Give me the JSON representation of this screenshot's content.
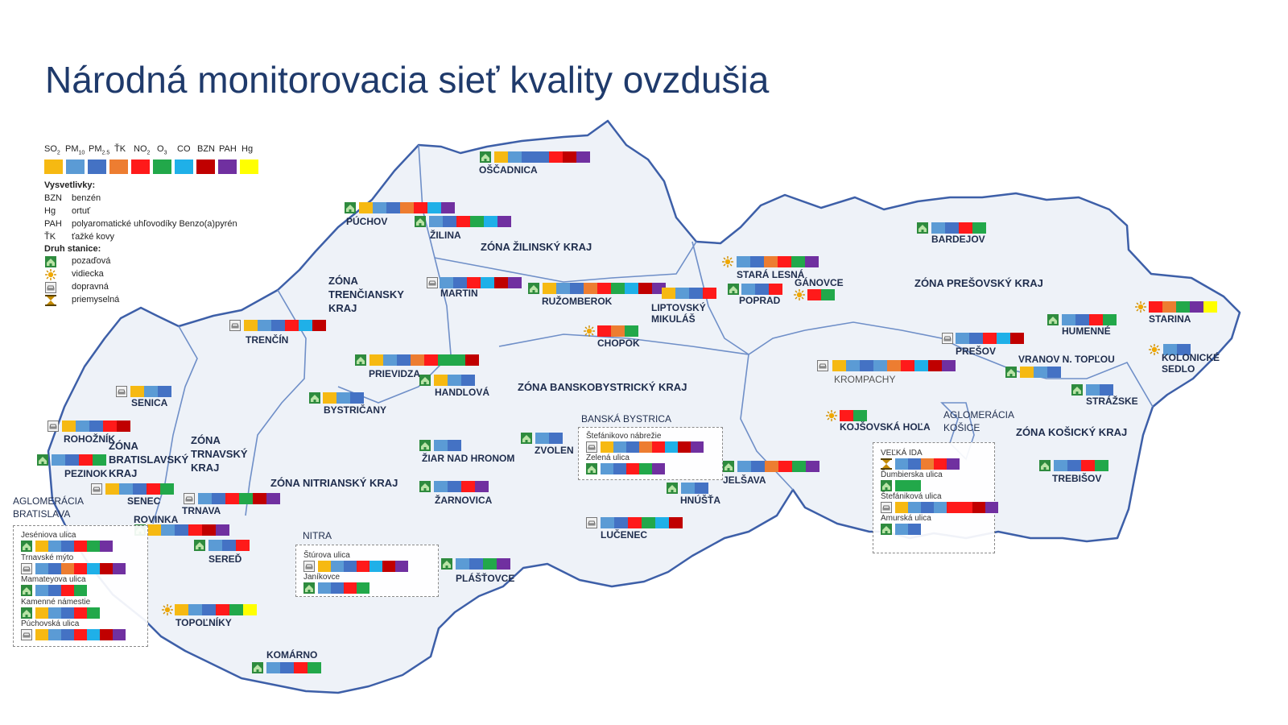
{
  "title": "Národná monitorovacia sieť kvality ovzdušia",
  "colors": {
    "SO2": "#f6b912",
    "PM10": "#5b9bd5",
    "PM25": "#4472c4",
    "TK": "#ed7d31",
    "NO2": "#ff1a1a",
    "O3": "#22a84a",
    "CO": "#1fb0e8",
    "BZN": "#c00000",
    "PAH": "#7030a0",
    "Hg": "#ffff00",
    "map_fill": "#eef2f8",
    "map_border": "#3d5fa8"
  },
  "legend": {
    "pollutants": [
      {
        "key": "SO2",
        "label": "SO",
        "sub": "2"
      },
      {
        "key": "PM10",
        "label": "PM",
        "sub": "10"
      },
      {
        "key": "PM25",
        "label": "PM",
        "sub": "2.5"
      },
      {
        "key": "TK",
        "label": "ŤK",
        "sub": ""
      },
      {
        "key": "NO2",
        "label": "NO",
        "sub": "2"
      },
      {
        "key": "O3",
        "label": "O",
        "sub": "3"
      },
      {
        "key": "CO",
        "label": "CO",
        "sub": ""
      },
      {
        "key": "BZN",
        "label": "BZN",
        "sub": ""
      },
      {
        "key": "PAH",
        "label": "PAH",
        "sub": ""
      },
      {
        "key": "Hg",
        "label": "Hg",
        "sub": ""
      }
    ],
    "vysvetlivky_title": "Vysvetlivky:",
    "vysvetlivky": [
      {
        "k": "BZN",
        "v": "benzén"
      },
      {
        "k": "Hg",
        "v": "ortuť"
      },
      {
        "k": "PAH",
        "v": "polyaromatické uhľovodíky Benzo(a)pyrén"
      },
      {
        "k": "ŤK",
        "v": "ťažké kovy"
      }
    ],
    "druh_title": "Druh stanice:",
    "druh": [
      {
        "icon": "background-station-icon",
        "type": "bg",
        "v": "pozaďová"
      },
      {
        "icon": "rural-station-icon",
        "type": "rural",
        "v": "vidiecka"
      },
      {
        "icon": "traffic-station-icon",
        "type": "traffic",
        "v": "dopravná"
      },
      {
        "icon": "industrial-station-icon",
        "type": "ind",
        "v": "priemyselná"
      }
    ]
  },
  "zones": [
    "ZÓNA ŽILINSKÝ KRAJ",
    "ZÓNA TRENČIANSKY KRAJ",
    "ZÓNA PREŠOVSKÝ KRAJ",
    "ZÓNA BANSKOBYSTRICKÝ KRAJ",
    "ZÓNA TRNAVSKÝ KRAJ",
    "ZÓNA BRATISLAVSKÝ KRAJ",
    "ZÓNA NITRIANSKÝ KRAJ",
    "ZÓNA KOŠICKÝ KRAJ"
  ],
  "agglomerations": [
    "AGLOMERÁCIA BRATISLAVA",
    "AGLOMERÁCIA KOŠICE"
  ],
  "stations": [
    {
      "name": "OŠČADNICA",
      "type": "bg",
      "poll": [
        "SO2",
        "PM10",
        "PM25",
        "PM25",
        "NO2",
        "BZN",
        "PAH"
      ]
    },
    {
      "name": "PÚCHOV",
      "type": "bg",
      "poll": [
        "SO2",
        "PM10",
        "PM25",
        "TK",
        "NO2",
        "CO",
        "PAH"
      ]
    },
    {
      "name": "ŽILINA",
      "type": "bg",
      "poll": [
        "PM10",
        "PM25",
        "NO2",
        "O3",
        "CO",
        "PAH"
      ]
    },
    {
      "name": "MARTIN",
      "type": "traffic",
      "poll": [
        "PM10",
        "PM25",
        "NO2",
        "CO",
        "BZN",
        "PAH"
      ]
    },
    {
      "name": "RUŽOMBEROK",
      "type": "bg",
      "poll": [
        "SO2",
        "PM10",
        "PM25",
        "TK",
        "NO2",
        "O3",
        "CO",
        "BZN",
        "PAH"
      ]
    },
    {
      "name": "LIPTOVSKÝ MIKULÁŠ",
      "type": "none",
      "poll": [
        "SO2",
        "PM10",
        "PM25",
        "NO2"
      ]
    },
    {
      "name": "STARÁ LESNÁ",
      "type": "rural",
      "poll": [
        "PM10",
        "PM25",
        "TK",
        "NO2",
        "O3",
        "PAH"
      ]
    },
    {
      "name": "POPRAD",
      "type": "bg",
      "poll": [
        "PM10",
        "PM25",
        "NO2"
      ]
    },
    {
      "name": "GÁNOVCE",
      "type": "rural",
      "poll": [
        "NO2",
        "O3"
      ]
    },
    {
      "name": "BARDEJOV",
      "type": "bg",
      "poll": [
        "PM10",
        "PM25",
        "NO2",
        "O3"
      ]
    },
    {
      "name": "STARINA",
      "type": "rural",
      "poll": [
        "NO2",
        "TK",
        "O3",
        "PAH",
        "Hg"
      ]
    },
    {
      "name": "HUMENNÉ",
      "type": "bg",
      "poll": [
        "PM10",
        "PM25",
        "NO2",
        "O3"
      ]
    },
    {
      "name": "PREŠOV",
      "type": "traffic",
      "poll": [
        "PM10",
        "PM25",
        "NO2",
        "CO",
        "BZN"
      ]
    },
    {
      "name": "VRANOV N. TOPĽOU",
      "type": "bg",
      "poll": [
        "SO2",
        "PM10",
        "PM25"
      ]
    },
    {
      "name": "KOLONICKÉ SEDLO",
      "type": "rural",
      "poll": [
        "PM10",
        "PM25"
      ]
    },
    {
      "name": "STRÁŽSKE",
      "type": "bg",
      "poll": [
        "PM10",
        "PM25"
      ]
    },
    {
      "name": "KROMPACHY",
      "type": "traffic",
      "poll": [
        "SO2",
        "PM10",
        "PM25",
        "PM10",
        "TK",
        "NO2",
        "CO",
        "BZN",
        "PAH"
      ]
    },
    {
      "name": "KOJŠOVSKÁ HOĽA",
      "type": "rural",
      "poll": [
        "NO2",
        "O3"
      ]
    },
    {
      "name": "TREBIŠOV",
      "type": "bg",
      "poll": [
        "PM10",
        "PM25",
        "NO2",
        "O3"
      ]
    },
    {
      "name": "CHOPOK",
      "type": "rural",
      "poll": [
        "NO2",
        "TK",
        "O3"
      ]
    },
    {
      "name": "TRENČÍN",
      "type": "traffic",
      "poll": [
        "SO2",
        "PM10",
        "PM25",
        "NO2",
        "CO",
        "BZN"
      ]
    },
    {
      "name": "PRIEVIDZA",
      "type": "bg",
      "poll": [
        "SO2",
        "PM10",
        "PM25",
        "TK",
        "NO2",
        "O3",
        "O3",
        "BZN"
      ]
    },
    {
      "name": "HANDLOVÁ",
      "type": "bg",
      "poll": [
        "SO2",
        "PM10",
        "PM25"
      ]
    },
    {
      "name": "BYSTRIČANY",
      "type": "bg",
      "poll": [
        "SO2",
        "PM10",
        "PM25"
      ]
    },
    {
      "name": "SENICA",
      "type": "traffic",
      "poll": [
        "SO2",
        "PM10",
        "PM25"
      ]
    },
    {
      "name": "ROHOŽNÍK",
      "type": "traffic",
      "poll": [
        "SO2",
        "PM10",
        "PM25",
        "NO2",
        "BZN"
      ]
    },
    {
      "name": "PEZINOK",
      "type": "bg",
      "poll": [
        "PM10",
        "PM25",
        "NO2",
        "O3"
      ]
    },
    {
      "name": "SENEC",
      "type": "traffic",
      "poll": [
        "SO2",
        "PM10",
        "PM25",
        "NO2",
        "O3"
      ]
    },
    {
      "name": "TRNAVA",
      "type": "traffic",
      "poll": [
        "PM10",
        "PM25",
        "NO2",
        "O3",
        "BZN",
        "PAH"
      ]
    },
    {
      "name": "ROVINKA",
      "type": "bg",
      "poll": [
        "SO2",
        "PM10",
        "PM25",
        "NO2",
        "BZN",
        "PAH"
      ]
    },
    {
      "name": "SEREĎ",
      "type": "bg",
      "poll": [
        "PM10",
        "PM25",
        "NO2"
      ]
    },
    {
      "name": "TOPOĽNÍKY",
      "type": "rural",
      "poll": [
        "SO2",
        "PM10",
        "PM25",
        "NO2",
        "O3",
        "Hg"
      ]
    },
    {
      "name": "KOMÁRNO",
      "type": "bg",
      "poll": [
        "PM10",
        "PM25",
        "NO2",
        "O3"
      ]
    },
    {
      "name": "PLÁŠŤOVCE",
      "type": "bg",
      "poll": [
        "PM10",
        "PM25",
        "O3",
        "PAH"
      ]
    },
    {
      "name": "ŽIAR NAD HRONOM",
      "type": "bg",
      "poll": [
        "PM10",
        "PM25"
      ]
    },
    {
      "name": "ŽARNOVICA",
      "type": "bg",
      "poll": [
        "PM10",
        "PM25",
        "NO2",
        "PAH"
      ]
    },
    {
      "name": "ZVOLEN",
      "type": "bg",
      "poll": [
        "PM10",
        "PM25"
      ]
    },
    {
      "name": "LUČENEC",
      "type": "traffic",
      "poll": [
        "PM10",
        "PM25",
        "NO2",
        "O3",
        "CO",
        "BZN"
      ]
    },
    {
      "name": "HNÚŠŤA",
      "type": "bg",
      "poll": [
        "PM10",
        "PM25"
      ]
    },
    {
      "name": "JELŠAVA",
      "type": "bg",
      "poll": [
        "PM10",
        "PM25",
        "TK",
        "NO2",
        "O3",
        "PAH"
      ]
    }
  ],
  "groups": [
    {
      "title": "NITRA",
      "items": [
        {
          "name": "Štúrova ulica",
          "type": "traffic",
          "poll": [
            "SO2",
            "PM10",
            "PM25",
            "NO2",
            "CO",
            "BZN",
            "PAH"
          ]
        },
        {
          "name": "Janíkovce",
          "type": "bg",
          "poll": [
            "PM10",
            "PM25",
            "NO2",
            "O3"
          ]
        }
      ]
    },
    {
      "title": "BANSKÁ BYSTRICA",
      "items": [
        {
          "name": "Štefánikovo nábrežie",
          "type": "traffic",
          "poll": [
            "SO2",
            "PM10",
            "PM25",
            "TK",
            "NO2",
            "CO",
            "BZN",
            "PAH"
          ]
        },
        {
          "name": "Zelená ulica",
          "type": "bg",
          "poll": [
            "PM10",
            "PM25",
            "NO2",
            "O3",
            "PAH"
          ]
        }
      ]
    },
    {
      "title": "",
      "items": [
        {
          "name": "VEĽKÁ IDA",
          "type": "ind",
          "poll": [
            "PM10",
            "PM25",
            "TK",
            "NO2",
            "PAH"
          ]
        },
        {
          "name": "Ďumbierska ulica",
          "type": "bg",
          "poll": [
            "O3",
            "O3"
          ]
        },
        {
          "name": "Štefániková ulica",
          "type": "traffic",
          "poll": [
            "SO2",
            "PM10",
            "PM25",
            "PM10",
            "NO2",
            "NO2",
            "BZN",
            "PAH"
          ]
        },
        {
          "name": "Amurská ulica",
          "type": "bg",
          "poll": [
            "PM10",
            "PM25"
          ]
        }
      ]
    },
    {
      "title": "",
      "items": [
        {
          "name": "Jeséniova ulica",
          "type": "bg",
          "poll": [
            "SO2",
            "PM10",
            "PM25",
            "NO2",
            "O3",
            "PAH"
          ]
        },
        {
          "name": "Trnavské mýto",
          "type": "traffic",
          "poll": [
            "PM10",
            "PM25",
            "TK",
            "NO2",
            "CO",
            "BZN",
            "PAH"
          ]
        },
        {
          "name": "Mamateyova ulica",
          "type": "bg",
          "poll": [
            "PM10",
            "PM25",
            "NO2",
            "O3"
          ]
        },
        {
          "name": "Kamenné námestie",
          "type": "bg",
          "poll": [
            "SO2",
            "PM10",
            "PM25",
            "NO2",
            "O3"
          ]
        },
        {
          "name": "Púchovská ulica",
          "type": "traffic",
          "poll": [
            "SO2",
            "PM10",
            "PM25",
            "NO2",
            "CO",
            "BZN",
            "PAH"
          ]
        }
      ]
    }
  ]
}
